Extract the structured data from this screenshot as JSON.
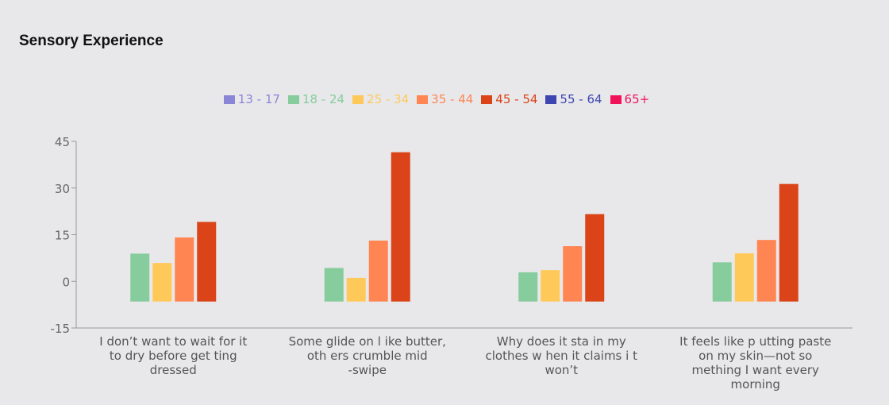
{
  "chart_data": {
    "type": "bar",
    "title": "Sensory Experience",
    "categories": [
      [
        "I don’t want to wait for it",
        "to dry before get ting",
        "dressed"
      ],
      [
        "Some glide on l ike butter,",
        "oth ers crumble mid",
        "-swipe"
      ],
      [
        "Why does it sta in my",
        "clothes w hen it claims i t",
        "won’t"
      ],
      [
        "It feels like p utting paste",
        "on my skin—not so",
        "mething I want every",
        "morning"
      ]
    ],
    "series": [
      {
        "name": "13 - 17",
        "color": "#8b85d8",
        "values": [
          null,
          null,
          null,
          null
        ]
      },
      {
        "name": "18 - 24",
        "color": "#86cc9c",
        "values": [
          8.9,
          4.3,
          2.9,
          6.1
        ]
      },
      {
        "name": "25 - 34",
        "color": "#ffc95a",
        "values": [
          5.9,
          1.1,
          3.6,
          9.0
        ]
      },
      {
        "name": "35 - 44",
        "color": "#ff8553",
        "values": [
          14.1,
          13.1,
          11.3,
          13.3
        ]
      },
      {
        "name": "45 - 54",
        "color": "#da4418",
        "values": [
          19.1,
          41.5,
          21.6,
          31.3
        ]
      },
      {
        "name": "55 - 64",
        "color": "#3d46b0",
        "values": [
          null,
          null,
          null,
          null
        ]
      },
      {
        "name": "65+",
        "color": "#f0135a",
        "values": [
          null,
          null,
          null,
          null
        ]
      }
    ],
    "yticks": [
      -15,
      0,
      15,
      30,
      45
    ],
    "ylim": [
      -15,
      45
    ],
    "bar_base": -6.5,
    "legend_position": "top-center",
    "grid": false
  }
}
